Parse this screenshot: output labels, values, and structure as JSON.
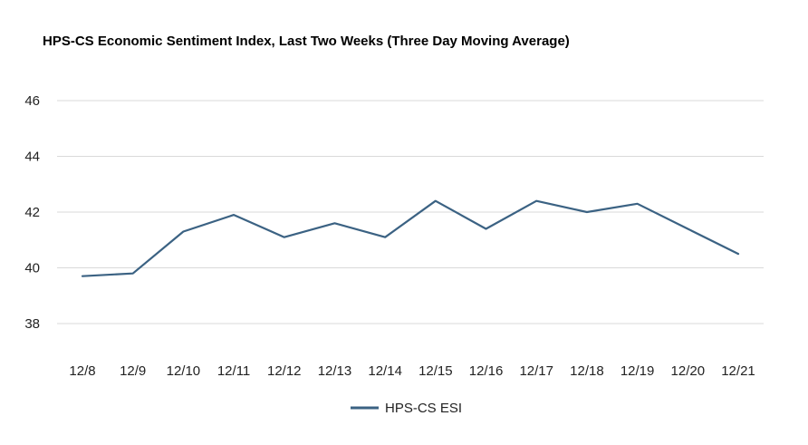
{
  "chart_data": {
    "type": "line",
    "title": "HPS-CS Economic Sentiment Index, Last Two Weeks (Three Day Moving Average)",
    "xlabel": "",
    "ylabel": "",
    "categories": [
      "12/8",
      "12/9",
      "12/10",
      "12/11",
      "12/12",
      "12/13",
      "12/14",
      "12/15",
      "12/16",
      "12/17",
      "12/18",
      "12/19",
      "12/20",
      "12/21"
    ],
    "series": [
      {
        "name": "HPS-CS ESI",
        "color": "#3b6283",
        "values": [
          39.7,
          39.8,
          41.3,
          41.9,
          41.1,
          41.6,
          41.1,
          42.4,
          41.4,
          42.4,
          42.0,
          42.3,
          41.4,
          40.5
        ]
      }
    ],
    "yticks": [
      38,
      40,
      42,
      44,
      46
    ],
    "ylim": [
      38,
      46
    ],
    "grid": true,
    "legend_position": "bottom"
  }
}
